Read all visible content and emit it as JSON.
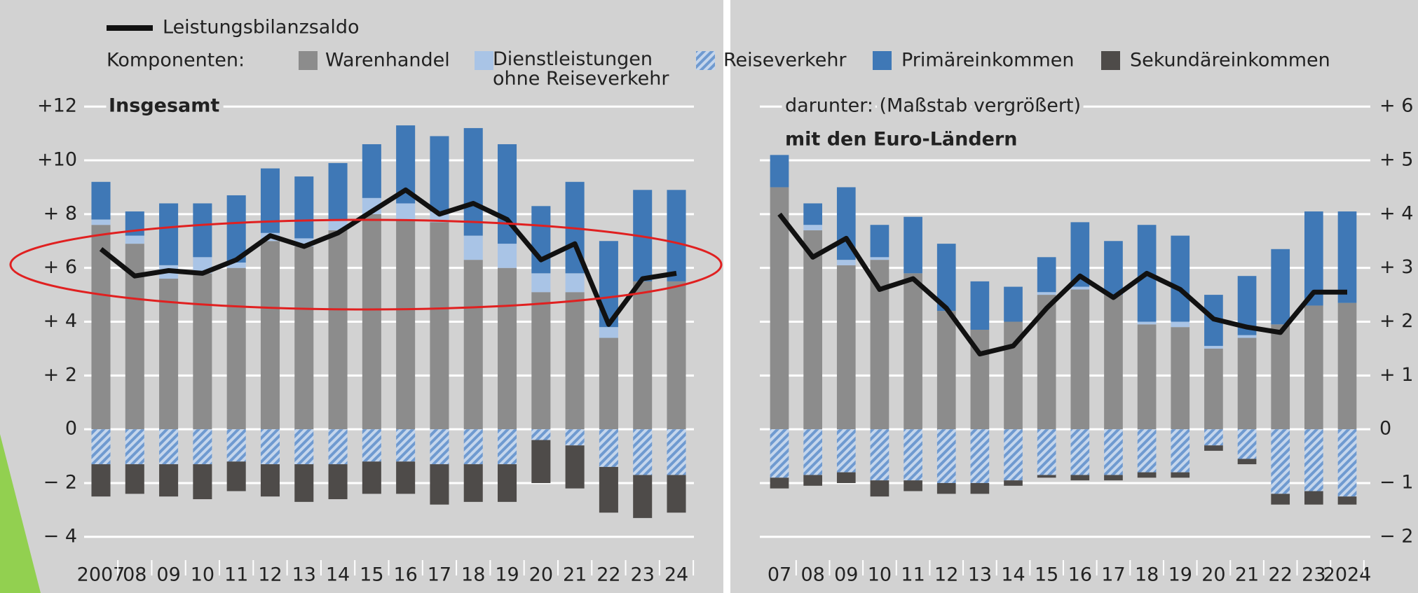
{
  "legend_line_label": "Leistungsbilanzsaldo",
  "legend_title": "Komponenten:",
  "chart_data": [
    {
      "type": "bar",
      "stacked": true,
      "title": "Insgesamt",
      "categories": [
        "2007",
        "08",
        "09",
        "10",
        "11",
        "12",
        "13",
        "14",
        "15",
        "16",
        "17",
        "18",
        "19",
        "20",
        "21",
        "22",
        "23",
        "24"
      ],
      "ylim": [
        -4.5,
        12.5
      ],
      "yticks": [
        {
          "value": 12,
          "label": "+12"
        },
        {
          "value": 10,
          "label": "+10"
        },
        {
          "value": 8,
          "label": "+ 8"
        },
        {
          "value": 6,
          "label": "+ 6"
        },
        {
          "value": 4,
          "label": "+ 4"
        },
        {
          "value": 2,
          "label": "+ 2"
        },
        0,
        {
          "value": -2,
          "label": "− 2"
        },
        {
          "value": -4,
          "label": "− 4"
        }
      ],
      "grid": true,
      "series": [
        {
          "name": "Warenhandel",
          "color": "#8c8c8c",
          "values": [
            7.6,
            6.9,
            5.6,
            5.8,
            6.0,
            7.0,
            6.8,
            7.4,
            8.0,
            7.8,
            7.7,
            6.3,
            6.0,
            5.1,
            5.1,
            3.4,
            5.5,
            5.5
          ]
        },
        {
          "name": "Dienstleistungen ohne Reiseverkehr",
          "color": "#a9c4e6",
          "values": [
            0.2,
            0.3,
            0.5,
            0.6,
            0.2,
            0.3,
            0.3,
            0.4,
            0.6,
            0.6,
            0.4,
            0.9,
            0.9,
            0.7,
            0.7,
            0.4,
            0.0,
            0.0
          ]
        },
        {
          "name": "Reiseverkehr",
          "color": "#6f9ad0",
          "hatched": true,
          "values": [
            -1.3,
            -1.3,
            -1.3,
            -1.3,
            -1.2,
            -1.3,
            -1.3,
            -1.3,
            -1.2,
            -1.2,
            -1.3,
            -1.3,
            -1.3,
            -0.4,
            -0.6,
            -1.4,
            -1.7,
            -1.7
          ]
        },
        {
          "name": "Primäreinkommen",
          "color": "#3f78b6",
          "values": [
            1.4,
            0.9,
            2.3,
            2.0,
            2.5,
            2.4,
            2.3,
            2.1,
            2.0,
            2.9,
            2.8,
            4.0,
            3.7,
            2.5,
            3.4,
            3.2,
            3.4,
            3.4
          ]
        },
        {
          "name": "Sekundäreinkommen",
          "color": "#4e4b49",
          "values": [
            -1.2,
            -1.1,
            -1.2,
            -1.3,
            -1.1,
            -1.2,
            -1.4,
            -1.3,
            -1.2,
            -1.2,
            -1.5,
            -1.4,
            -1.4,
            -1.6,
            -1.6,
            -1.7,
            -1.6,
            -1.4
          ]
        }
      ],
      "line": {
        "color": "#111111",
        "values": [
          6.7,
          5.7,
          5.9,
          5.8,
          6.3,
          7.2,
          6.8,
          7.3,
          8.1,
          8.9,
          8.0,
          8.4,
          7.8,
          6.3,
          6.9,
          3.9,
          5.6,
          5.8
        ]
      }
    },
    {
      "type": "bar",
      "stacked": true,
      "subtitle": "darunter: (Maßstab vergrößert)",
      "title": "mit den Euro-Ländern",
      "categories": [
        "07",
        "08",
        "09",
        "10",
        "11",
        "12",
        "13",
        "14",
        "15",
        "16",
        "17",
        "18",
        "19",
        "20",
        "21",
        "22",
        "23",
        "2024"
      ],
      "ylim": [
        -2.25,
        6.25
      ],
      "yticks": [
        {
          "value": 6,
          "label": "+ 6"
        },
        {
          "value": 5,
          "label": "+ 5"
        },
        {
          "value": 4,
          "label": "+ 4"
        },
        {
          "value": 3,
          "label": "+ 3"
        },
        {
          "value": 2,
          "label": "+ 2"
        },
        {
          "value": 1,
          "label": "+ 1"
        },
        0,
        {
          "value": -1,
          "label": "− 1"
        },
        {
          "value": -2,
          "label": "− 2"
        }
      ],
      "grid": true,
      "series": [
        {
          "color": "#8c8c8c",
          "values": [
            4.5,
            3.7,
            3.05,
            3.15,
            2.9,
            2.2,
            1.85,
            2.0,
            2.5,
            2.6,
            2.5,
            1.95,
            1.9,
            1.5,
            1.7,
            1.95,
            2.3,
            2.35
          ]
        },
        {
          "color": "#a9c4e6",
          "values": [
            0.0,
            0.1,
            0.1,
            0.05,
            0.0,
            0.0,
            0.0,
            0.0,
            0.05,
            0.05,
            0.0,
            0.05,
            0.1,
            0.05,
            0.05,
            0.0,
            0.0,
            0.0
          ]
        },
        {
          "color": "#6f9ad0",
          "hatched": true,
          "values": [
            -0.9,
            -0.85,
            -0.8,
            -0.95,
            -0.95,
            -1.0,
            -1.0,
            -0.95,
            -0.85,
            -0.85,
            -0.85,
            -0.8,
            -0.8,
            -0.3,
            -0.55,
            -1.2,
            -1.15,
            -1.25
          ]
        },
        {
          "color": "#3f78b6",
          "values": [
            0.6,
            0.4,
            1.35,
            0.6,
            1.05,
            1.25,
            0.9,
            0.65,
            0.65,
            1.2,
            1.0,
            1.8,
            1.6,
            0.95,
            1.1,
            1.4,
            1.75,
            1.7
          ]
        },
        {
          "color": "#4e4b49",
          "values": [
            -0.2,
            -0.2,
            -0.2,
            -0.3,
            -0.2,
            -0.2,
            -0.2,
            -0.1,
            -0.05,
            -0.1,
            -0.1,
            -0.1,
            -0.1,
            -0.1,
            -0.1,
            -0.2,
            -0.25,
            -0.15
          ]
        }
      ],
      "line": {
        "color": "#111111",
        "values": [
          4.0,
          3.2,
          3.55,
          2.6,
          2.8,
          2.25,
          1.4,
          1.55,
          2.25,
          2.85,
          2.45,
          2.9,
          2.6,
          2.05,
          1.9,
          1.8,
          2.55,
          2.55
        ]
      }
    }
  ]
}
